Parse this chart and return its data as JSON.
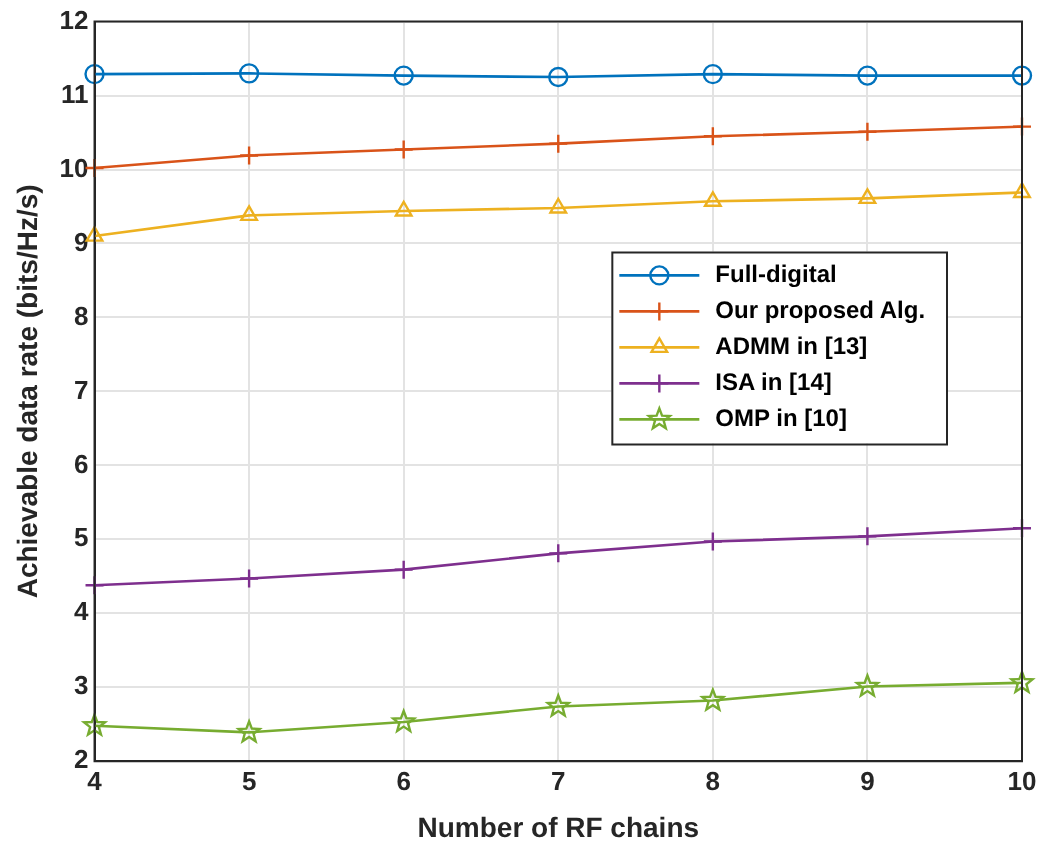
{
  "chart_data": {
    "type": "line",
    "xlabel": "Number of RF chains",
    "ylabel": "Achievable data rate (bits/Hz/s)",
    "x": [
      4,
      5,
      6,
      7,
      8,
      9,
      10
    ],
    "series": [
      {
        "name": "Full-digital",
        "color": "#0072bd",
        "marker": "circle",
        "values": [
          11.29,
          11.3,
          11.27,
          11.25,
          11.29,
          11.27,
          11.27
        ]
      },
      {
        "name": "Our proposed Alg.",
        "color": "#d95319",
        "marker": "cross",
        "values": [
          10.02,
          10.19,
          10.27,
          10.35,
          10.45,
          10.51,
          10.58
        ]
      },
      {
        "name": "ADMM in [13]",
        "color": "#edb120",
        "marker": "triangle",
        "values": [
          9.1,
          9.38,
          9.44,
          9.48,
          9.57,
          9.61,
          9.69
        ]
      },
      {
        "name": "ISA in [14]",
        "color": "#7e2f8e",
        "marker": "cross",
        "values": [
          4.38,
          4.47,
          4.59,
          4.81,
          4.97,
          5.04,
          5.15
        ]
      },
      {
        "name": "OMP in [10]",
        "color": "#77ac30",
        "marker": "star",
        "values": [
          2.48,
          2.39,
          2.53,
          2.74,
          2.82,
          3.01,
          3.06
        ]
      }
    ],
    "xlim": [
      4,
      10
    ],
    "xticks": [
      4,
      5,
      6,
      7,
      8,
      9,
      10
    ],
    "ylim": [
      2,
      12
    ],
    "yticks": [
      2,
      3,
      4,
      5,
      6,
      7,
      8,
      9,
      10,
      11,
      12
    ],
    "grid": true,
    "legend": "center right",
    "line_style": "solid"
  }
}
